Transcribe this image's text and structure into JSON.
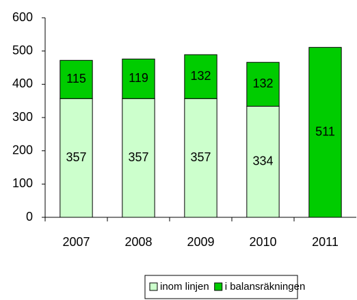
{
  "chart_data": {
    "type": "stacked_bar",
    "categories": [
      "2007",
      "2008",
      "2009",
      "2010",
      "2011"
    ],
    "series": [
      {
        "name": "inom linjen",
        "color": "#ccffcc",
        "values": [
          357,
          357,
          357,
          334,
          null
        ]
      },
      {
        "name": "i balansräkningen",
        "color": "#00cc00",
        "values": [
          115,
          119,
          132,
          132,
          511
        ]
      }
    ],
    "ylim": [
      0,
      600
    ],
    "yticks": [
      0,
      100,
      200,
      300,
      400,
      500,
      600
    ],
    "grid": false,
    "legend": "bottom"
  }
}
